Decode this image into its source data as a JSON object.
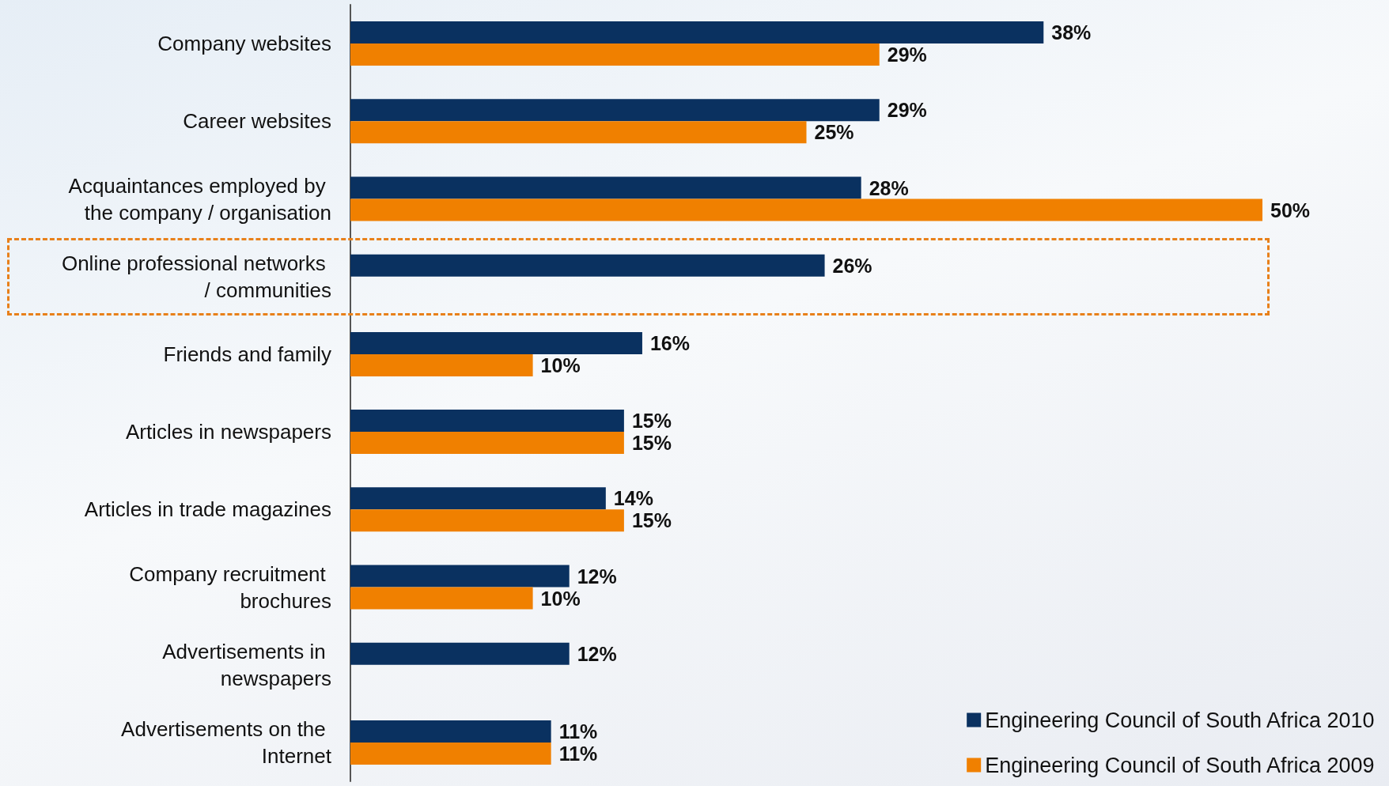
{
  "chart_data": {
    "type": "bar",
    "orientation": "horizontal",
    "categories": [
      "Company websites",
      "Career websites",
      "Acquaintances employed by the company / organisation",
      "Online professional networks / communities",
      "Friends and family",
      "Articles in newspapers",
      "Articles in trade magazines",
      "Company recruitment brochures",
      "Advertisements in newspapers",
      "Advertisements on the Internet"
    ],
    "series": [
      {
        "name": "Engineering Council of South Africa 2010",
        "color": "#0a3160",
        "values": [
          38,
          29,
          28,
          26,
          16,
          15,
          14,
          12,
          12,
          11
        ],
        "value_labels": [
          "38%",
          "29%",
          "28%",
          "26%",
          "16%",
          "15%",
          "14%",
          "12%",
          "12%",
          "11%"
        ]
      },
      {
        "name": "Engineering Council of South Africa 2009",
        "color": "#f08000",
        "values": [
          29,
          25,
          50,
          null,
          10,
          15,
          15,
          10,
          null,
          11
        ],
        "value_labels": [
          "29%",
          "25%",
          "50%",
          null,
          "10%",
          "15%",
          "15%",
          "10%",
          null,
          "11%"
        ]
      }
    ],
    "legend": "bottom right",
    "grid": false
  }
}
